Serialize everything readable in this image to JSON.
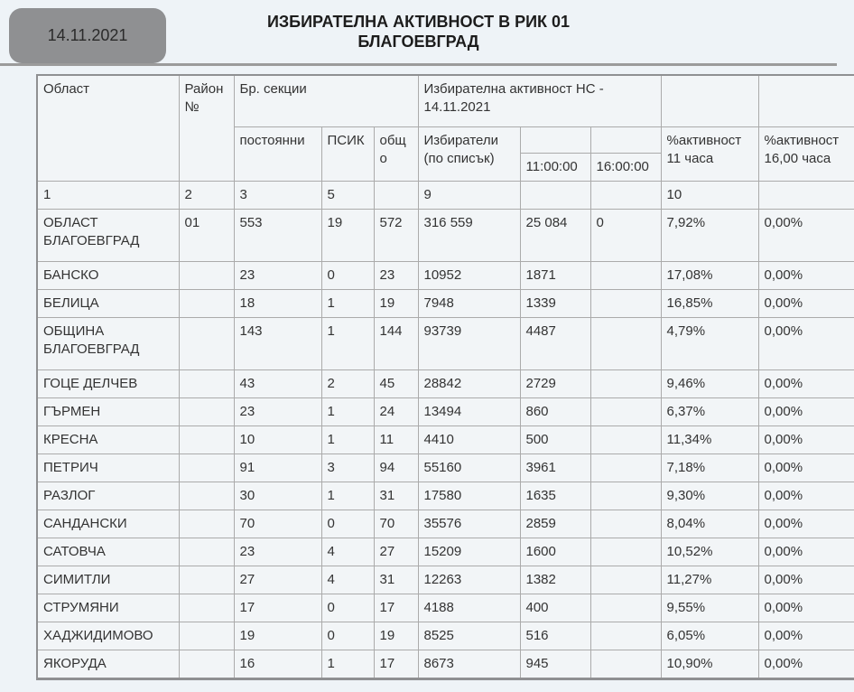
{
  "page": {
    "date_label": "14.11.2021",
    "title_line1": "ИЗБИРАТЕЛНА АКТИВНОСТ В РИК 01",
    "title_line2": "БЛАГОЕВГРАД"
  },
  "colors": {
    "page_background": "#eef3f7",
    "cell_background": "#f2f5f7",
    "cell_border": "#ababab",
    "outer_border": "#8f9092",
    "date_tab_gray": "#8f9092",
    "divider_gray": "#9b9b9b",
    "text": "#333333"
  },
  "table": {
    "header": {
      "oblast": "Област",
      "rayon": "Район №",
      "br_sekcii": "Бр. секции",
      "izb_aktivnost": "Избирателна активност НС - 14.11.2021",
      "postoyanni": "постоянни",
      "psik": "ПСИК",
      "obshto": "общо",
      "izbirateli": "Избиратели (по списък)",
      "t11": "11:00:00",
      "t16": "16:00:00",
      "pct11_l1": "%активност",
      "pct11_l2": "11 часа",
      "pct16_l1": "%активност",
      "pct16_l2": "16,00 часа"
    },
    "column_numbers": [
      "1",
      "2",
      "3",
      "5",
      "",
      "9",
      "",
      "",
      "10",
      ""
    ],
    "rows": [
      {
        "name": "ОБЛАСТ БЛАГОЕВГРАД",
        "rayon": "01",
        "postoyanni": "553",
        "psik": "19",
        "obshto": "572",
        "izbirateli": "316 559",
        "t11": "25 084",
        "t16": "0",
        "pct11": "7,92%",
        "pct16": "0,00%"
      },
      {
        "name": "БАНСКО",
        "rayon": "",
        "postoyanni": "23",
        "psik": "0",
        "obshto": "23",
        "izbirateli": "10952",
        "t11": "1871",
        "t16": "",
        "pct11": "17,08%",
        "pct16": "0,00%"
      },
      {
        "name": "БЕЛИЦА",
        "rayon": "",
        "postoyanni": "18",
        "psik": "1",
        "obshto": "19",
        "izbirateli": "7948",
        "t11": "1339",
        "t16": "",
        "pct11": "16,85%",
        "pct16": "0,00%"
      },
      {
        "name": "ОБЩИНА БЛАГОЕВГРАД",
        "rayon": "",
        "postoyanni": "143",
        "psik": "1",
        "obshto": "144",
        "izbirateli": "93739",
        "t11": "4487",
        "t16": "",
        "pct11": "4,79%",
        "pct16": "0,00%"
      },
      {
        "name": "ГОЦЕ ДЕЛЧЕВ",
        "rayon": "",
        "postoyanni": "43",
        "psik": "2",
        "obshto": "45",
        "izbirateli": "28842",
        "t11": "2729",
        "t16": "",
        "pct11": "9,46%",
        "pct16": "0,00%"
      },
      {
        "name": "ГЪРМЕН",
        "rayon": "",
        "postoyanni": "23",
        "psik": "1",
        "obshto": "24",
        "izbirateli": "13494",
        "t11": "860",
        "t16": "",
        "pct11": "6,37%",
        "pct16": "0,00%"
      },
      {
        "name": "КРЕСНА",
        "rayon": "",
        "postoyanni": "10",
        "psik": "1",
        "obshto": "11",
        "izbirateli": "4410",
        "t11": "500",
        "t16": "",
        "pct11": "11,34%",
        "pct16": "0,00%"
      },
      {
        "name": "ПЕТРИЧ",
        "rayon": "",
        "postoyanni": "91",
        "psik": "3",
        "obshto": "94",
        "izbirateli": "55160",
        "t11": "3961",
        "t16": "",
        "pct11": "7,18%",
        "pct16": "0,00%"
      },
      {
        "name": "РАЗЛОГ",
        "rayon": "",
        "postoyanni": "30",
        "psik": "1",
        "obshto": "31",
        "izbirateli": "17580",
        "t11": "1635",
        "t16": "",
        "pct11": "9,30%",
        "pct16": "0,00%"
      },
      {
        "name": "САНДАНСКИ",
        "rayon": "",
        "postoyanni": "70",
        "psik": "0",
        "obshto": "70",
        "izbirateli": "35576",
        "t11": "2859",
        "t16": "",
        "pct11": "8,04%",
        "pct16": "0,00%"
      },
      {
        "name": "САТОВЧА",
        "rayon": "",
        "postoyanni": "23",
        "psik": "4",
        "obshto": "27",
        "izbirateli": "15209",
        "t11": "1600",
        "t16": "",
        "pct11": "10,52%",
        "pct16": "0,00%"
      },
      {
        "name": "СИМИТЛИ",
        "rayon": "",
        "postoyanni": "27",
        "psik": "4",
        "obshto": "31",
        "izbirateli": "12263",
        "t11": "1382",
        "t16": "",
        "pct11": "11,27%",
        "pct16": "0,00%"
      },
      {
        "name": "СТРУМЯНИ",
        "rayon": "",
        "postoyanni": "17",
        "psik": "0",
        "obshto": "17",
        "izbirateli": "4188",
        "t11": "400",
        "t16": "",
        "pct11": "9,55%",
        "pct16": "0,00%"
      },
      {
        "name": "ХАДЖИДИМОВО",
        "rayon": "",
        "postoyanni": "19",
        "psik": "0",
        "obshto": "19",
        "izbirateli": "8525",
        "t11": "516",
        "t16": "",
        "pct11": "6,05%",
        "pct16": "0,00%"
      },
      {
        "name": "ЯКОРУДА",
        "rayon": "",
        "postoyanni": "16",
        "psik": "1",
        "obshto": "17",
        "izbirateli": "8673",
        "t11": "945",
        "t16": "",
        "pct11": "10,90%",
        "pct16": "0,00%"
      }
    ]
  }
}
